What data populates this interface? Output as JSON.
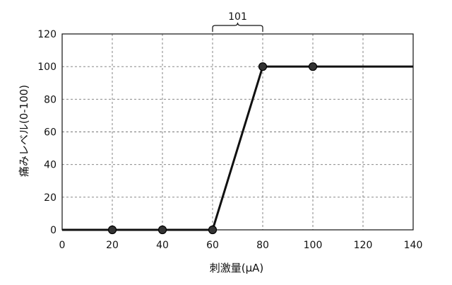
{
  "chart_data": {
    "type": "line",
    "title": "",
    "xlabel": "刺激量(μA)",
    "ylabel": "痛みレベル(0-100)",
    "xlim": [
      0,
      140
    ],
    "ylim": [
      0,
      120
    ],
    "xticks": [
      0,
      20,
      40,
      60,
      80,
      100,
      120,
      140
    ],
    "yticks": [
      0,
      20,
      40,
      60,
      80,
      100,
      120
    ],
    "grid": true,
    "series": [
      {
        "x": [
          0,
          20,
          40,
          60,
          80,
          100,
          140
        ],
        "y": [
          0,
          0,
          0,
          0,
          100,
          100,
          100
        ]
      }
    ],
    "markers": [
      {
        "x": 20,
        "y": 0
      },
      {
        "x": 40,
        "y": 0
      },
      {
        "x": 60,
        "y": 0
      },
      {
        "x": 80,
        "y": 100
      },
      {
        "x": 100,
        "y": 100
      }
    ],
    "annotations": [
      {
        "text": "101",
        "x_from": 60,
        "x_to": 80
      }
    ],
    "colors": {
      "line": "#111111",
      "grid": "#777777",
      "frame": "#111111",
      "marker": "#333333"
    }
  }
}
